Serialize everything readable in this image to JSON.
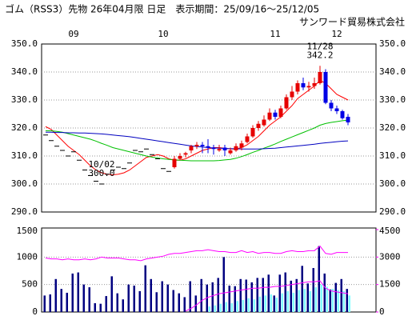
{
  "chart_data": [
    {
      "type": "candlestick",
      "title": "ゴム（RSS3）先物 26年04月限 日足　表示期間：25/09/16～25/12/05",
      "subtitle": "サンワード貿易株式会社",
      "categories": [
        null,
        null,
        null,
        null,
        null,
        "09",
        null,
        null,
        null,
        null,
        null,
        null,
        null,
        null,
        null,
        null,
        null,
        null,
        null,
        null,
        null,
        "10",
        null,
        null,
        null,
        null,
        null,
        null,
        null,
        null,
        null,
        null,
        null,
        null,
        null,
        null,
        null,
        null,
        null,
        null,
        null,
        "11",
        null,
        null,
        null,
        null,
        null,
        null,
        null,
        null,
        null,
        null,
        "12",
        null,
        null
      ],
      "open": [
        317.5,
        315.5,
        313.5,
        312,
        310,
        311.5,
        308.5,
        305,
        303,
        301,
        300,
        303.5,
        305,
        306,
        305.5,
        307.5,
        312,
        311.5,
        312.5,
        310.5,
        309,
        305.5,
        304.5,
        306,
        309,
        310.5,
        312,
        313.5,
        314,
        313.5,
        313,
        312,
        313,
        311,
        312,
        313,
        315,
        317,
        320,
        321,
        323,
        325.5,
        324,
        327,
        331,
        333,
        336,
        334.5,
        335,
        336,
        340,
        329,
        327,
        326,
        324
      ],
      "high": [
        317.5,
        315.5,
        313.5,
        312,
        310,
        311.5,
        308.5,
        305,
        303,
        301,
        300,
        303.5,
        305,
        306,
        305.5,
        307.5,
        312,
        311.5,
        312.5,
        310.5,
        309,
        305.5,
        304.5,
        310,
        311,
        311.5,
        314,
        315,
        315,
        316,
        314,
        314,
        314,
        313,
        314.5,
        315.5,
        318,
        321,
        322.5,
        324.5,
        327,
        326.5,
        328,
        332,
        335,
        337,
        338,
        336.5,
        338,
        342.2,
        341,
        330,
        328,
        326.5,
        325
      ],
      "low": [
        317.5,
        315.5,
        313.5,
        312,
        310,
        311.5,
        308.5,
        305,
        303,
        301,
        300,
        303.5,
        305,
        306,
        305.5,
        307.5,
        312,
        311.5,
        312.5,
        310.5,
        309,
        305.5,
        304.5,
        305.5,
        308.5,
        309.5,
        311,
        312.5,
        311,
        311,
        310.5,
        311.5,
        310,
        310.5,
        311.5,
        312,
        314.5,
        316.5,
        319,
        320.5,
        322.5,
        323,
        323.5,
        326.5,
        330,
        332,
        333.5,
        333,
        334,
        335.5,
        328.5,
        326,
        325,
        323,
        321
      ],
      "close": [
        317.5,
        315.5,
        313.5,
        312,
        310,
        311.5,
        308.5,
        305,
        303,
        301,
        300,
        303.5,
        305,
        306,
        305.5,
        307.5,
        312,
        311.5,
        312.5,
        310.5,
        309,
        305.5,
        304.5,
        309,
        310,
        311,
        313.5,
        314,
        313.5,
        313,
        312.5,
        312.5,
        312,
        312,
        313.5,
        314.5,
        317,
        320,
        321.5,
        323,
        325.5,
        324,
        327,
        331,
        333,
        336,
        334.5,
        335,
        336,
        340,
        329,
        327,
        326,
        323.5,
        322
      ],
      "up_color": "#e60000",
      "down_color": "#0000e6",
      "doji_color": "#000000",
      "series": [
        {
          "color": "#ff0000",
          "values": [
            320.5,
            319.5,
            317.5,
            315.5,
            313.5,
            312,
            310.5,
            308.5,
            306.5,
            305,
            304,
            303.5,
            303.3,
            303.5,
            304,
            305,
            306.5,
            308,
            309.5,
            310,
            310.5,
            310,
            309,
            308.5,
            308.5,
            309,
            310,
            311,
            312,
            312.5,
            313,
            313,
            312.8,
            312.5,
            312.5,
            313,
            314,
            315.5,
            317,
            319,
            321,
            322.5,
            324,
            326,
            328,
            330.5,
            332,
            333.5,
            335,
            337,
            336,
            334,
            332,
            331,
            330
          ]
        },
        {
          "color": "#00c000",
          "values": [
            319,
            319,
            318.8,
            318.5,
            318,
            317.5,
            317,
            316.5,
            316,
            315.3,
            314.5,
            313.8,
            313,
            312.5,
            312,
            311.5,
            311,
            310.5,
            310,
            309.6,
            309.3,
            309,
            308.8,
            308.6,
            308.5,
            308.4,
            308.3,
            308.3,
            308.3,
            308.3,
            308.3,
            308.4,
            308.6,
            308.8,
            309.2,
            309.8,
            310.5,
            311.3,
            312,
            312.8,
            313.5,
            314.3,
            315.2,
            316,
            316.8,
            317.6,
            318.4,
            319.2,
            320,
            321,
            321.6,
            322,
            322.3,
            322.6,
            322.8
          ]
        },
        {
          "color": "#0000c0",
          "values": [
            318.5,
            318.5,
            318.4,
            318.4,
            318.3,
            318.3,
            318.2,
            318.2,
            318.1,
            318,
            317.9,
            317.7,
            317.5,
            317.3,
            317.1,
            316.9,
            316.6,
            316.3,
            316,
            315.7,
            315.4,
            315.1,
            314.8,
            314.5,
            314.2,
            313.9,
            313.6,
            313.4,
            313.2,
            313,
            312.9,
            312.8,
            312.7,
            312.6,
            312.6,
            312.5,
            312.5,
            312.5,
            312.5,
            312.6,
            312.7,
            312.8,
            313,
            313.2,
            313.4,
            313.6,
            313.8,
            314,
            314.2,
            314.5,
            314.7,
            314.9,
            315.1,
            315.3,
            315.4
          ]
        }
      ],
      "annotations": [
        {
          "date": "11/28",
          "value": 342.2
        },
        {
          "date": "10/02",
          "value": 300,
          "label": "300.0"
        }
      ],
      "ylim": [
        290,
        350
      ],
      "yticks": [
        {
          "value": 290,
          "label": "290.0"
        },
        {
          "value": 300,
          "label": "300.0"
        },
        {
          "value": 310,
          "label": "310.0"
        },
        {
          "value": 320,
          "label": "320.0"
        },
        {
          "value": 330,
          "label": "330.0"
        },
        {
          "value": 340,
          "label": "340.0"
        },
        {
          "value": 350,
          "label": "350.0"
        }
      ],
      "grid": true
    },
    {
      "type": "bar",
      "series": [
        {
          "type": "bar",
          "color": "#000080",
          "values": [
            300,
            320,
            600,
            420,
            350,
            700,
            720,
            500,
            450,
            160,
            150,
            290,
            650,
            340,
            230,
            500,
            480,
            380,
            850,
            600,
            360,
            560,
            500,
            400,
            340,
            270,
            560,
            300,
            600,
            500,
            540,
            620,
            1000,
            480,
            470,
            600,
            590,
            540,
            620,
            620,
            680,
            300,
            680,
            720,
            570,
            600,
            840,
            520,
            800,
            1200,
            700,
            410,
            530,
            600,
            420
          ]
        },
        {
          "type": "bar",
          "color": "#80ffff",
          "values": [
            null,
            null,
            null,
            null,
            null,
            null,
            null,
            null,
            null,
            null,
            null,
            null,
            null,
            null,
            null,
            null,
            null,
            null,
            null,
            null,
            null,
            null,
            null,
            null,
            null,
            null,
            null,
            null,
            null,
            100,
            120,
            150,
            180,
            160,
            200,
            220,
            250,
            230,
            280,
            300,
            320,
            260,
            340,
            380,
            350,
            400,
            420,
            380,
            450,
            500,
            460,
            420,
            400,
            380,
            300
          ]
        },
        {
          "type": "line",
          "axis": "y2",
          "color": "#ff00ff",
          "values": [
            2950,
            2900,
            2900,
            2850,
            2900,
            2850,
            2850,
            2900,
            2850,
            2900,
            3000,
            2950,
            2950,
            2950,
            2900,
            2850,
            2850,
            2800,
            2900,
            2950,
            3000,
            3050,
            3150,
            3200,
            3200,
            3250,
            3300,
            3350,
            3350,
            3400,
            3350,
            3300,
            3300,
            3250,
            3250,
            3350,
            3250,
            3300,
            3200,
            3250,
            3250,
            3200,
            3200,
            3300,
            3350,
            3300,
            3300,
            3350,
            3350,
            3600,
            3200,
            3150,
            3250,
            3250,
            3250
          ]
        },
        {
          "type": "line",
          "axis": "y2",
          "color": "#ff00ff",
          "values": [
            null,
            null,
            null,
            null,
            null,
            null,
            null,
            null,
            null,
            null,
            null,
            null,
            null,
            null,
            null,
            null,
            null,
            null,
            null,
            null,
            null,
            null,
            null,
            null,
            null,
            50,
            200,
            400,
            650,
            800,
            900,
            1000,
            1050,
            1100,
            1150,
            1200,
            1250,
            1300,
            1300,
            1350,
            1350,
            1400,
            1400,
            1450,
            1500,
            1550,
            1600,
            1650,
            1650,
            1700,
            1300,
            1150,
            1100,
            1050,
            1000
          ]
        }
      ],
      "ylim": [
        0,
        1500
      ],
      "yticks": [
        0,
        500,
        1000,
        1500
      ],
      "y2lim": [
        0,
        4500
      ],
      "y2ticks": [
        0,
        1500,
        3000,
        4500
      ],
      "y2color": "#ff00ff",
      "grid": true
    }
  ]
}
